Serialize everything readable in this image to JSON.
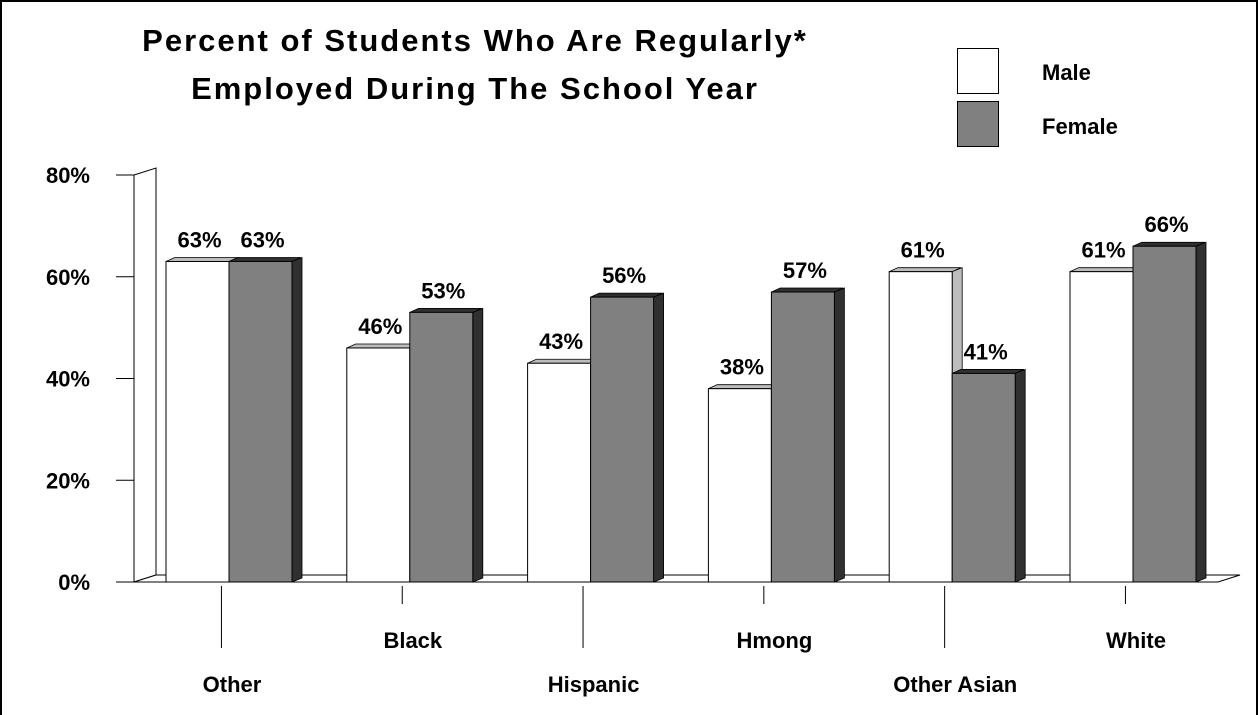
{
  "chart_data": {
    "type": "bar",
    "title_line1": "Percent of Students Who Are Regularly*",
    "title_line2": "Employed During The School Year",
    "categories": [
      "Other",
      "Black",
      "Hispanic",
      "Hmong",
      "Other Asian",
      "White"
    ],
    "series": [
      {
        "name": "Male",
        "values": [
          63,
          46,
          43,
          38,
          61,
          61
        ],
        "color": "#ffffff",
        "side_color": "#bdbdbd"
      },
      {
        "name": "Female",
        "values": [
          63,
          53,
          56,
          57,
          41,
          66
        ],
        "color": "#808080",
        "side_color": "#303030"
      }
    ],
    "value_labels": {
      "Male": [
        "63%",
        "46%",
        "43%",
        "38%",
        "61%",
        "61%"
      ],
      "Female": [
        "63%",
        "53%",
        "56%",
        "57%",
        "41%",
        "66%"
      ]
    },
    "y_ticks": [
      "0%",
      "20%",
      "40%",
      "60%",
      "80%"
    ],
    "ylim": [
      0,
      80
    ],
    "legend_position": "top-right",
    "grid": false
  }
}
